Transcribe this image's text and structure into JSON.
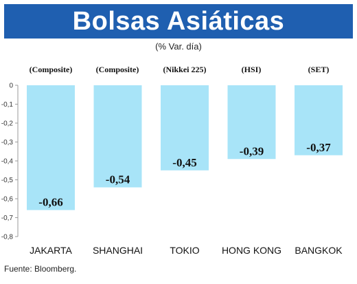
{
  "title": "Bolsas Asiáticas",
  "subtitle": "(% Var. día)",
  "source": "Fuente: Bloomberg.",
  "colors": {
    "title_bg": "#1f5fb0",
    "bar": "#a8e4f8",
    "axis": "#9a9a9a"
  },
  "chart_data": {
    "type": "bar",
    "categories": [
      "JAKARTA",
      "SHANGHAI",
      "TOKIO",
      "HONG KONG",
      "BANGKOK"
    ],
    "index_labels": [
      "(Composite)",
      "(Composite)",
      "(Nikkei 225)",
      "(HSI)",
      "(SET)"
    ],
    "values": [
      -0.66,
      -0.54,
      -0.45,
      -0.39,
      -0.37
    ],
    "value_labels": [
      "-0,66",
      "-0,54",
      "-0,45",
      "-0,39",
      "-0,37"
    ],
    "yticks": [
      "0",
      "-0,1",
      "-0,2",
      "-0,3",
      "-0,4",
      "-0,5",
      "-0,6",
      "-0,7",
      "-0,8"
    ],
    "ylim": [
      -0.8,
      0
    ],
    "grid": false
  }
}
